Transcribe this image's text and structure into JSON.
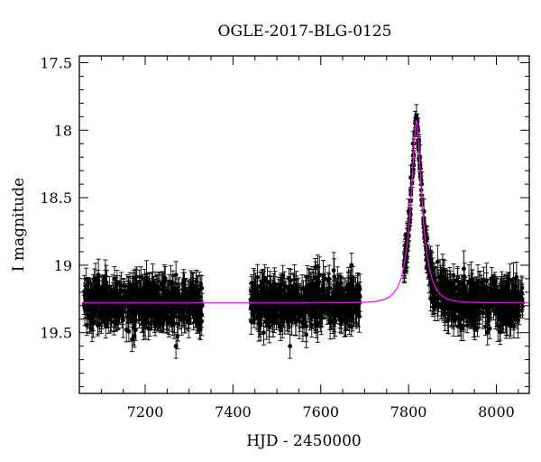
{
  "chart_data": {
    "type": "scatter",
    "title": "OGLE-2017-BLG-0125",
    "xlabel": "HJD - 2450000",
    "ylabel": "I magnitude",
    "xlim": [
      7050,
      8075
    ],
    "ylim": [
      19.95,
      17.45
    ],
    "y_inverted": true,
    "grid": false,
    "legend": "none",
    "x_ticks": [
      7200,
      7400,
      7600,
      7800,
      8000
    ],
    "y_ticks": [
      17.5,
      18,
      18.5,
      19,
      19.5
    ],
    "x_tick_labels": [
      "7200",
      "7400",
      "7600",
      "7800",
      "8000"
    ],
    "y_tick_labels": [
      "17.5",
      "18",
      "18.5",
      "19",
      "19.5"
    ],
    "series": [
      {
        "kind": "observations",
        "marker": "filled-circle-with-errorbars",
        "color": "#000000",
        "baseline_mag": 19.3,
        "season_ranges": [
          [
            7060,
            7330
          ],
          [
            7440,
            7690
          ],
          [
            7790,
            8060
          ]
        ],
        "typical_error": 0.09,
        "points": [
          [
            7070,
            19.3
          ],
          [
            7090,
            19.2
          ],
          [
            7110,
            19.45
          ],
          [
            7130,
            19.1
          ],
          [
            7150,
            19.35
          ],
          [
            7170,
            19.55
          ],
          [
            7190,
            19.25
          ],
          [
            7210,
            19.3
          ],
          [
            7230,
            19.4
          ],
          [
            7250,
            19.2
          ],
          [
            7270,
            19.6
          ],
          [
            7290,
            19.3
          ],
          [
            7310,
            19.15
          ],
          [
            7325,
            19.35
          ],
          [
            7450,
            19.3
          ],
          [
            7470,
            19.5
          ],
          [
            7490,
            19.2
          ],
          [
            7510,
            19.4
          ],
          [
            7530,
            19.6
          ],
          [
            7550,
            19.3
          ],
          [
            7570,
            19.2
          ],
          [
            7590,
            19.45
          ],
          [
            7610,
            19.1
          ],
          [
            7630,
            19.35
          ],
          [
            7650,
            19.25
          ],
          [
            7670,
            19.0
          ],
          [
            7685,
            19.3
          ],
          [
            7795,
            18.95
          ],
          [
            7800,
            18.6
          ],
          [
            7805,
            18.35
          ],
          [
            7810,
            18.1
          ],
          [
            7815,
            17.95
          ],
          [
            7818,
            17.9
          ],
          [
            7822,
            18.0
          ],
          [
            7826,
            18.2
          ],
          [
            7830,
            18.4
          ],
          [
            7835,
            18.6
          ],
          [
            7842,
            18.8
          ],
          [
            7850,
            18.95
          ],
          [
            7860,
            19.1
          ],
          [
            7880,
            19.2
          ],
          [
            7900,
            19.3
          ],
          [
            7920,
            19.4
          ],
          [
            7940,
            19.2
          ],
          [
            7960,
            19.35
          ],
          [
            7980,
            19.5
          ],
          [
            8000,
            19.25
          ],
          [
            8020,
            19.3
          ],
          [
            8040,
            19.45
          ],
          [
            8055,
            19.2
          ]
        ]
      },
      {
        "kind": "model",
        "marker": "line",
        "color": "#ff00ff",
        "baseline_mag": 19.28,
        "peak_mag": 17.93,
        "peak_x": 7818,
        "x_start": 7055,
        "x_end": 8075
      }
    ]
  }
}
